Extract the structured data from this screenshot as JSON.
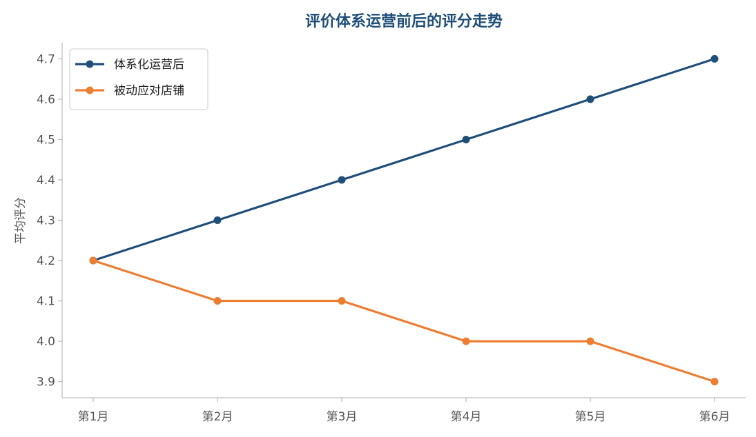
{
  "chart_data": {
    "type": "line",
    "title": "评价体系运营前后的评分走势",
    "xlabel": "",
    "ylabel": "平均评分",
    "categories": [
      "第1月",
      "第2月",
      "第3月",
      "第4月",
      "第5月",
      "第6月"
    ],
    "series": [
      {
        "name": "体系化运营后",
        "values": [
          4.2,
          4.3,
          4.4,
          4.5,
          4.6,
          4.7
        ],
        "color": "#1f4e79"
      },
      {
        "name": "被动应对店铺",
        "values": [
          4.2,
          4.1,
          4.1,
          4.0,
          4.0,
          3.9
        ],
        "color": "#ed7d31"
      }
    ],
    "ylim": [
      3.86,
      4.74
    ],
    "yticks": [
      "3.9",
      "4.0",
      "4.1",
      "4.2",
      "4.3",
      "4.4",
      "4.5",
      "4.6",
      "4.7"
    ],
    "grid": false,
    "legend_position": "top-left",
    "title_color": "#1f4e79",
    "axis_color": "#bbbbbb"
  }
}
